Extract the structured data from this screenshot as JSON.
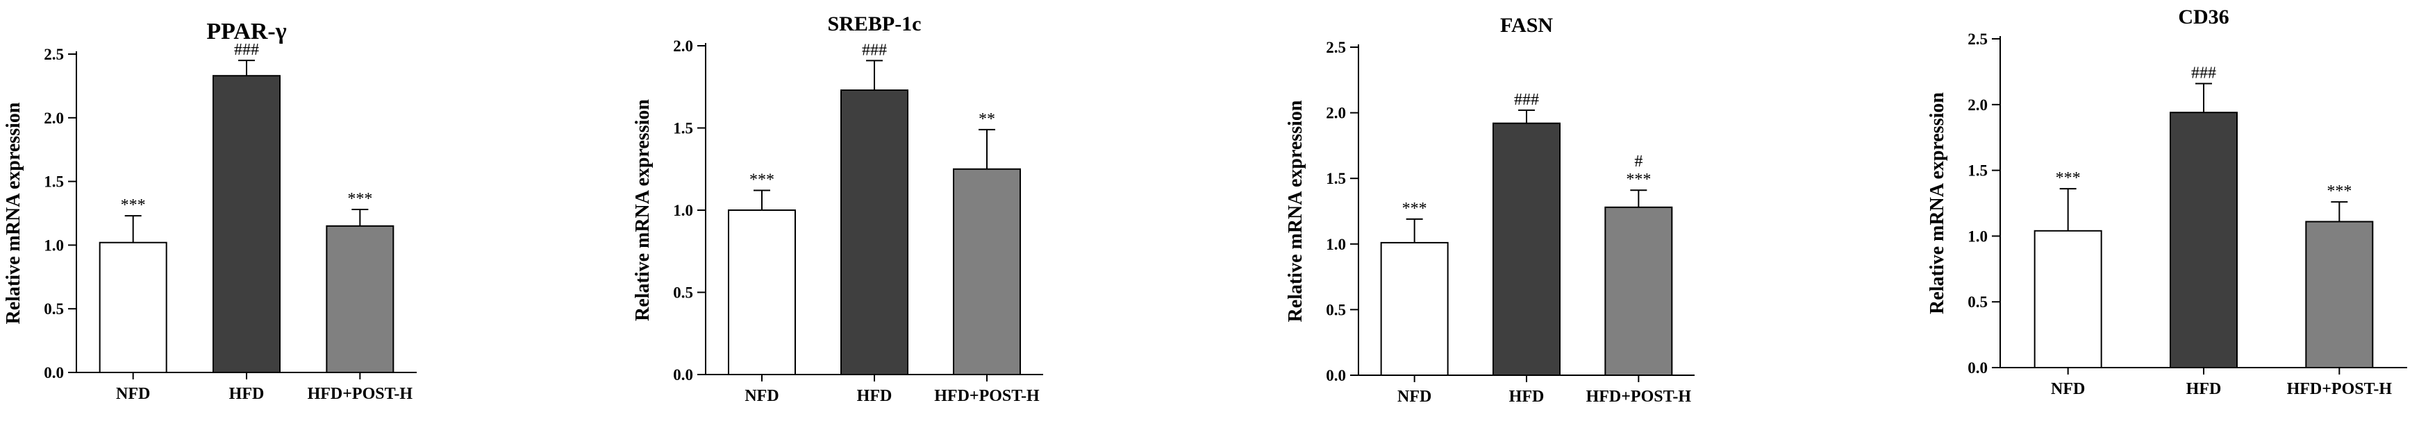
{
  "chart_data": [
    {
      "type": "bar",
      "title": "PPAR-γ",
      "ylabel": "Relative mRNA expression",
      "xlabel": "",
      "ylim": [
        0,
        2.5
      ],
      "yticks": [
        "0.0",
        "0.5",
        "1.0",
        "1.5",
        "2.0",
        "2.5"
      ],
      "categories": [
        "NFD",
        "HFD",
        "HFD+POST-H"
      ],
      "values": [
        1.02,
        2.33,
        1.15
      ],
      "errors": [
        0.21,
        0.12,
        0.13
      ],
      "annotations": [
        [
          "***"
        ],
        [
          "###"
        ],
        [
          "***"
        ]
      ],
      "bar_colors": [
        "#ffffff",
        "#3f3f3f",
        "#808080"
      ]
    },
    {
      "type": "bar",
      "title": "SREBP-1c",
      "ylabel": "Relative mRNA expression",
      "xlabel": "",
      "ylim": [
        0,
        2.0
      ],
      "yticks": [
        "0.0",
        "0.5",
        "1.0",
        "1.5",
        "2.0"
      ],
      "categories": [
        "NFD",
        "HFD",
        "HFD+POST-H"
      ],
      "values": [
        1.0,
        1.73,
        1.25
      ],
      "errors": [
        0.12,
        0.18,
        0.24
      ],
      "annotations": [
        [
          "***"
        ],
        [
          "###"
        ],
        [
          "**"
        ]
      ],
      "bar_colors": [
        "#ffffff",
        "#3f3f3f",
        "#808080"
      ]
    },
    {
      "type": "bar",
      "title": "FASN",
      "ylabel": "Relative mRNA expression",
      "xlabel": "",
      "ylim": [
        0,
        2.5
      ],
      "yticks": [
        "0.0",
        "0.5",
        "1.0",
        "1.5",
        "2.0",
        "2.5"
      ],
      "categories": [
        "NFD",
        "HFD",
        "HFD+POST-H"
      ],
      "values": [
        1.01,
        1.92,
        1.28
      ],
      "errors": [
        0.18,
        0.1,
        0.13
      ],
      "annotations": [
        [
          "***"
        ],
        [
          "###"
        ],
        [
          "#",
          "***"
        ]
      ],
      "bar_colors": [
        "#ffffff",
        "#3f3f3f",
        "#808080"
      ]
    },
    {
      "type": "bar",
      "title": "CD36",
      "ylabel": "Relative mRNA expression",
      "xlabel": "",
      "ylim": [
        0,
        2.5
      ],
      "yticks": [
        "0.0",
        "0.5",
        "1.0",
        "1.5",
        "2.0",
        "2.5"
      ],
      "categories": [
        "NFD",
        "HFD",
        "HFD+POST-H"
      ],
      "values": [
        1.04,
        1.94,
        1.11
      ],
      "errors": [
        0.32,
        0.22,
        0.15
      ],
      "annotations": [
        [
          "***"
        ],
        [
          "###"
        ],
        [
          "***"
        ]
      ],
      "bar_colors": [
        "#ffffff",
        "#3f3f3f",
        "#808080"
      ]
    }
  ]
}
